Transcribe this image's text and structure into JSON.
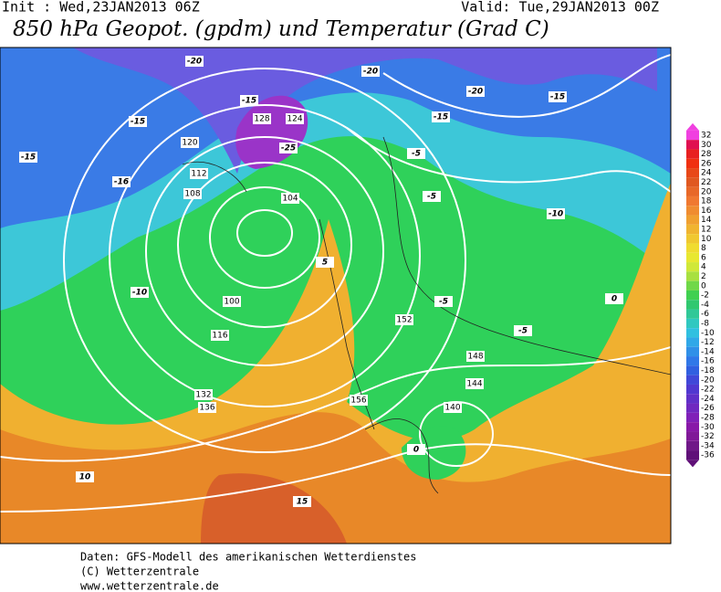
{
  "header": {
    "init": "Init : Wed,23JAN2013 06Z",
    "valid": "Valid: Tue,29JAN2013 00Z",
    "title": "850 hPa Geopot. (gpdm) und Temperatur (Grad C)"
  },
  "legend": {
    "ticks": [
      "32",
      "30",
      "28",
      "26",
      "24",
      "22",
      "20",
      "18",
      "16",
      "14",
      "12",
      "10",
      "8",
      "6",
      "4",
      "2",
      "0",
      "-2",
      "-4",
      "-6",
      "-8",
      "-10",
      "-12",
      "-14",
      "-16",
      "-18",
      "-20",
      "-22",
      "-24",
      "-26",
      "-28",
      "-30",
      "-32",
      "-34",
      "-36"
    ],
    "colors": [
      "#f040e0",
      "#e01050",
      "#e82020",
      "#f03010",
      "#e84818",
      "#e05820",
      "#e86828",
      "#f07830",
      "#f08c30",
      "#f0a030",
      "#f0b430",
      "#f0c830",
      "#f0dc30",
      "#e8e830",
      "#d0e838",
      "#a8e040",
      "#70d848",
      "#40d050",
      "#30c870",
      "#30c898",
      "#30c8c0",
      "#30c0e0",
      "#30a8e8",
      "#3090e8",
      "#3078e8",
      "#3060e0",
      "#4048d8",
      "#5038d0",
      "#6030c8",
      "#7028c0",
      "#8020b8",
      "#8818a8",
      "#801898",
      "#701888",
      "#601078"
    ]
  },
  "map": {
    "labels": [
      "-20",
      "-20",
      "-15",
      "-15",
      "-15",
      "-15",
      "-16",
      "-20",
      "-25",
      "-15",
      "-10",
      "-10",
      "-5",
      "-5",
      "-5",
      "-5",
      "0",
      "0",
      "5",
      "10",
      "15",
      "120",
      "124",
      "128",
      "112",
      "108",
      "104",
      "100",
      "116",
      "136",
      "140",
      "144",
      "148",
      "152",
      "156",
      "132"
    ]
  },
  "footer": [
    "Daten: GFS-Modell des amerikanischen Wetterdienstes",
    "(C) Wetterzentrale",
    "www.wetterzentrale.de"
  ]
}
